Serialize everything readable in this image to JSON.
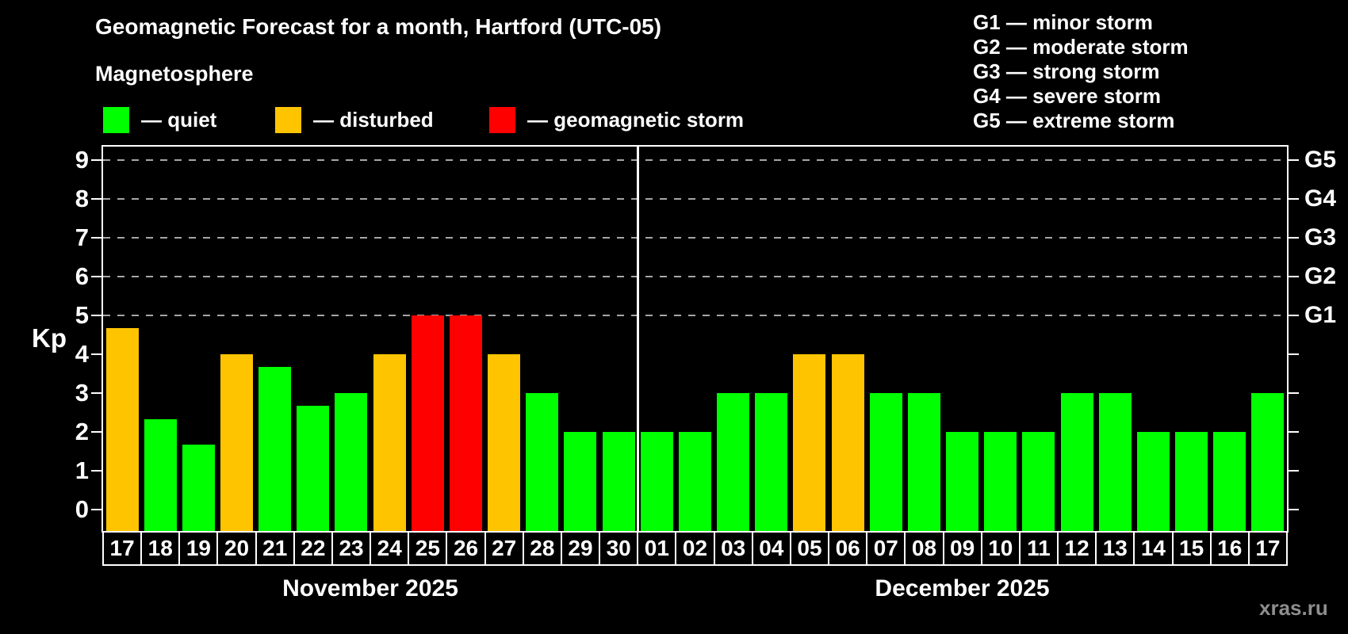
{
  "title": "Geomagnetic Forecast for a month, Hartford (UTC-05)",
  "subtitle": "Magnetosphere",
  "legend": {
    "items": [
      {
        "label": "— quiet",
        "status": "quiet"
      },
      {
        "label": "— disturbed",
        "status": "disturbed"
      },
      {
        "label": "— geomagnetic storm",
        "status": "storm"
      }
    ]
  },
  "g_legend": {
    "lines": [
      "G1 — minor storm",
      "G2 — moderate storm",
      "G3 — strong storm",
      "G4 — severe storm",
      "G5 — extreme storm"
    ]
  },
  "colors": {
    "quiet": "#00ff00",
    "disturbed": "#ffc400",
    "storm": "#ff0000",
    "grid": "#a6a6a6",
    "axis": "#ffffff",
    "watermark": "#8e8e8e"
  },
  "watermark": "xras.ru",
  "chart_data": {
    "type": "bar",
    "title": "Geomagnetic Forecast for a month, Hartford (UTC-05)",
    "ylabel": "Kp",
    "ylim": [
      0,
      9
    ],
    "grid": "dashed horizontal lines at Kp 5-9 only",
    "y_ticks": [
      0,
      1,
      2,
      3,
      4,
      5,
      6,
      7,
      8,
      9
    ],
    "gridlines_at": [
      5,
      6,
      7,
      8,
      9
    ],
    "right_axis_labels": [
      {
        "label": "G1",
        "kp": 5
      },
      {
        "label": "G2",
        "kp": 6
      },
      {
        "label": "G3",
        "kp": 7
      },
      {
        "label": "G4",
        "kp": 8
      },
      {
        "label": "G5",
        "kp": 9
      }
    ],
    "months": [
      {
        "label": "November 2025",
        "start": 0,
        "count": 14
      },
      {
        "label": "December 2025",
        "start": 14,
        "count": 17
      }
    ],
    "bars": [
      {
        "day": "17",
        "kp": 4.67,
        "status": "disturbed"
      },
      {
        "day": "18",
        "kp": 2.33,
        "status": "quiet"
      },
      {
        "day": "19",
        "kp": 1.67,
        "status": "quiet"
      },
      {
        "day": "20",
        "kp": 4.0,
        "status": "disturbed"
      },
      {
        "day": "21",
        "kp": 3.67,
        "status": "quiet"
      },
      {
        "day": "22",
        "kp": 2.67,
        "status": "quiet"
      },
      {
        "day": "23",
        "kp": 3.0,
        "status": "quiet"
      },
      {
        "day": "24",
        "kp": 4.0,
        "status": "disturbed"
      },
      {
        "day": "25",
        "kp": 5.0,
        "status": "storm"
      },
      {
        "day": "26",
        "kp": 5.0,
        "status": "storm"
      },
      {
        "day": "27",
        "kp": 4.0,
        "status": "disturbed"
      },
      {
        "day": "28",
        "kp": 3.0,
        "status": "quiet"
      },
      {
        "day": "29",
        "kp": 2.0,
        "status": "quiet"
      },
      {
        "day": "30",
        "kp": 2.0,
        "status": "quiet"
      },
      {
        "day": "01",
        "kp": 2.0,
        "status": "quiet"
      },
      {
        "day": "02",
        "kp": 2.0,
        "status": "quiet"
      },
      {
        "day": "03",
        "kp": 3.0,
        "status": "quiet"
      },
      {
        "day": "04",
        "kp": 3.0,
        "status": "quiet"
      },
      {
        "day": "05",
        "kp": 4.0,
        "status": "disturbed"
      },
      {
        "day": "06",
        "kp": 4.0,
        "status": "disturbed"
      },
      {
        "day": "07",
        "kp": 3.0,
        "status": "quiet"
      },
      {
        "day": "08",
        "kp": 3.0,
        "status": "quiet"
      },
      {
        "day": "09",
        "kp": 2.0,
        "status": "quiet"
      },
      {
        "day": "10",
        "kp": 2.0,
        "status": "quiet"
      },
      {
        "day": "11",
        "kp": 2.0,
        "status": "quiet"
      },
      {
        "day": "12",
        "kp": 3.0,
        "status": "quiet"
      },
      {
        "day": "13",
        "kp": 3.0,
        "status": "quiet"
      },
      {
        "day": "14",
        "kp": 2.0,
        "status": "quiet"
      },
      {
        "day": "15",
        "kp": 2.0,
        "status": "quiet"
      },
      {
        "day": "16",
        "kp": 2.0,
        "status": "quiet"
      },
      {
        "day": "17",
        "kp": 3.0,
        "status": "quiet"
      }
    ]
  }
}
